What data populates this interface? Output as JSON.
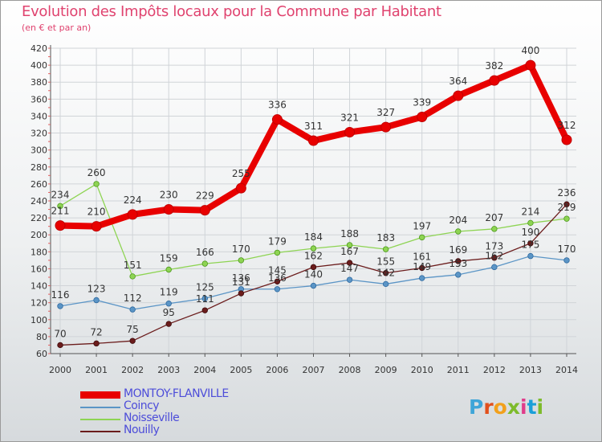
{
  "header": {
    "title": "Evolution des Impôts locaux pour la Commune par Habitant",
    "subtitle": "(en € et par an)"
  },
  "logo": {
    "text": "Proxiti",
    "colors": [
      "#3fa5d8",
      "#e2501c",
      "#f2a01c",
      "#7dbb2b",
      "#e03c8a",
      "#1a9fd8",
      "#7dbb2b"
    ]
  },
  "chart_data": {
    "type": "line",
    "title": "Evolution des Impôts locaux pour la Commune par Habitant",
    "subtitle": "(en € et par an)",
    "xlabel": "",
    "ylabel": "",
    "categories": [
      "2000",
      "2001",
      "2002",
      "2003",
      "2004",
      "2005",
      "2006",
      "2007",
      "2008",
      "2009",
      "2010",
      "2011",
      "2012",
      "2013",
      "2014"
    ],
    "ylim": [
      60,
      420
    ],
    "yticks": [
      60,
      80,
      100,
      120,
      140,
      160,
      180,
      200,
      220,
      240,
      260,
      280,
      300,
      320,
      340,
      360,
      380,
      400,
      420
    ],
    "grid": true,
    "legend_position": "bottom-left",
    "series": [
      {
        "name": "MONTOY-FLANVILLE",
        "color": "#e80000",
        "values": [
          211,
          210,
          224,
          230,
          229,
          255,
          336,
          311,
          321,
          327,
          339,
          364,
          382,
          400,
          312
        ]
      },
      {
        "name": "Coincy",
        "color": "#5b95c6",
        "values": [
          116,
          123,
          112,
          119,
          125,
          136,
          136,
          140,
          147,
          142,
          149,
          153,
          162,
          175,
          170
        ]
      },
      {
        "name": "Noisseville",
        "color": "#8ed453",
        "values": [
          234,
          260,
          151,
          159,
          166,
          170,
          179,
          184,
          188,
          183,
          197,
          204,
          207,
          214,
          219
        ]
      },
      {
        "name": "Nouilly",
        "color": "#6b1c1c",
        "values": [
          70,
          72,
          75,
          95,
          111,
          131,
          145,
          162,
          167,
          155,
          161,
          169,
          173,
          190,
          236
        ]
      }
    ]
  }
}
